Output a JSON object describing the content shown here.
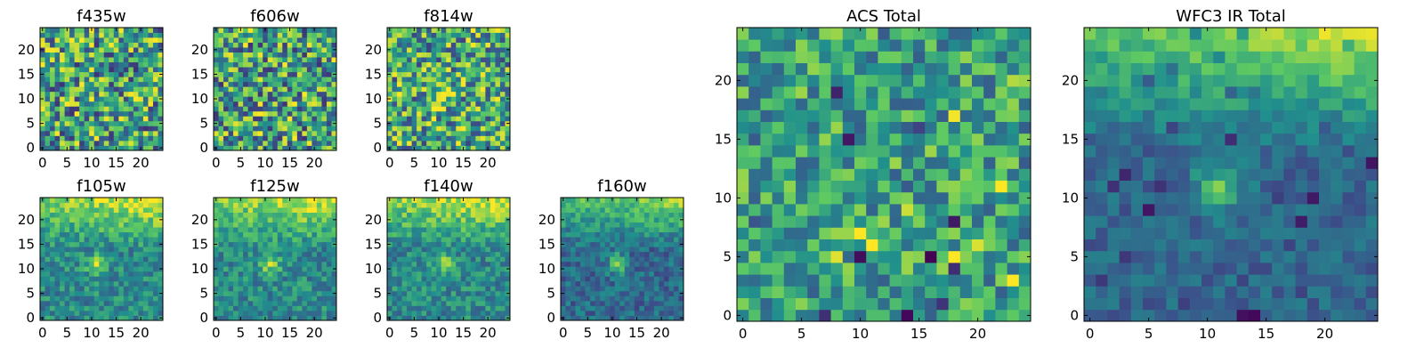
{
  "figure": {
    "background": "#ffffff",
    "colormap": [
      "#440154",
      "#3b528b",
      "#21908d",
      "#5dc963",
      "#fde725"
    ]
  },
  "chart_data": [
    {
      "type": "heatmap",
      "title": "f435w",
      "grid": [
        25,
        25
      ],
      "xticks": [
        0,
        5,
        10,
        15,
        20
      ],
      "yticks": [
        0,
        5,
        10,
        15,
        20
      ],
      "pattern": "noise",
      "seed": 11
    },
    {
      "type": "heatmap",
      "title": "f606w",
      "grid": [
        25,
        25
      ],
      "xticks": [
        0,
        5,
        10,
        15,
        20
      ],
      "yticks": [
        0,
        5,
        10,
        15,
        20
      ],
      "pattern": "noise",
      "seed": 23
    },
    {
      "type": "heatmap",
      "title": "f814w",
      "grid": [
        25,
        25
      ],
      "xticks": [
        0,
        5,
        10,
        15,
        20
      ],
      "yticks": [
        0,
        5,
        10,
        15,
        20
      ],
      "pattern": "noise-source",
      "seed": 37
    },
    {
      "type": "heatmap",
      "title": "f105w",
      "grid": [
        25,
        25
      ],
      "xticks": [
        0,
        5,
        10,
        15,
        20
      ],
      "yticks": [
        0,
        5,
        10,
        15,
        20
      ],
      "pattern": "ir",
      "seed": 41
    },
    {
      "type": "heatmap",
      "title": "f125w",
      "grid": [
        25,
        25
      ],
      "xticks": [
        0,
        5,
        10,
        15,
        20
      ],
      "yticks": [
        0,
        5,
        10,
        15,
        20
      ],
      "pattern": "ir",
      "seed": 53
    },
    {
      "type": "heatmap",
      "title": "f140w",
      "grid": [
        25,
        25
      ],
      "xticks": [
        0,
        5,
        10,
        15,
        20
      ],
      "yticks": [
        0,
        5,
        10,
        15,
        20
      ],
      "pattern": "ir",
      "seed": 67
    },
    {
      "type": "heatmap",
      "title": "f160w",
      "grid": [
        25,
        25
      ],
      "xticks": [
        0,
        5,
        10,
        15,
        20
      ],
      "yticks": [
        0,
        5,
        10,
        15,
        20
      ],
      "pattern": "ir-dark",
      "seed": 71
    },
    {
      "type": "heatmap",
      "title": "ACS Total",
      "grid": [
        25,
        25
      ],
      "xticks": [
        0,
        5,
        10,
        15,
        20
      ],
      "yticks": [
        0,
        5,
        10,
        15,
        20
      ],
      "pattern": "noise-mid",
      "seed": 83
    },
    {
      "type": "heatmap",
      "title": "WFC3 IR Total",
      "grid": [
        25,
        25
      ],
      "xticks": [
        0,
        5,
        10,
        15,
        20
      ],
      "yticks": [
        0,
        5,
        10,
        15,
        20
      ],
      "pattern": "ir-total",
      "seed": 97
    }
  ]
}
